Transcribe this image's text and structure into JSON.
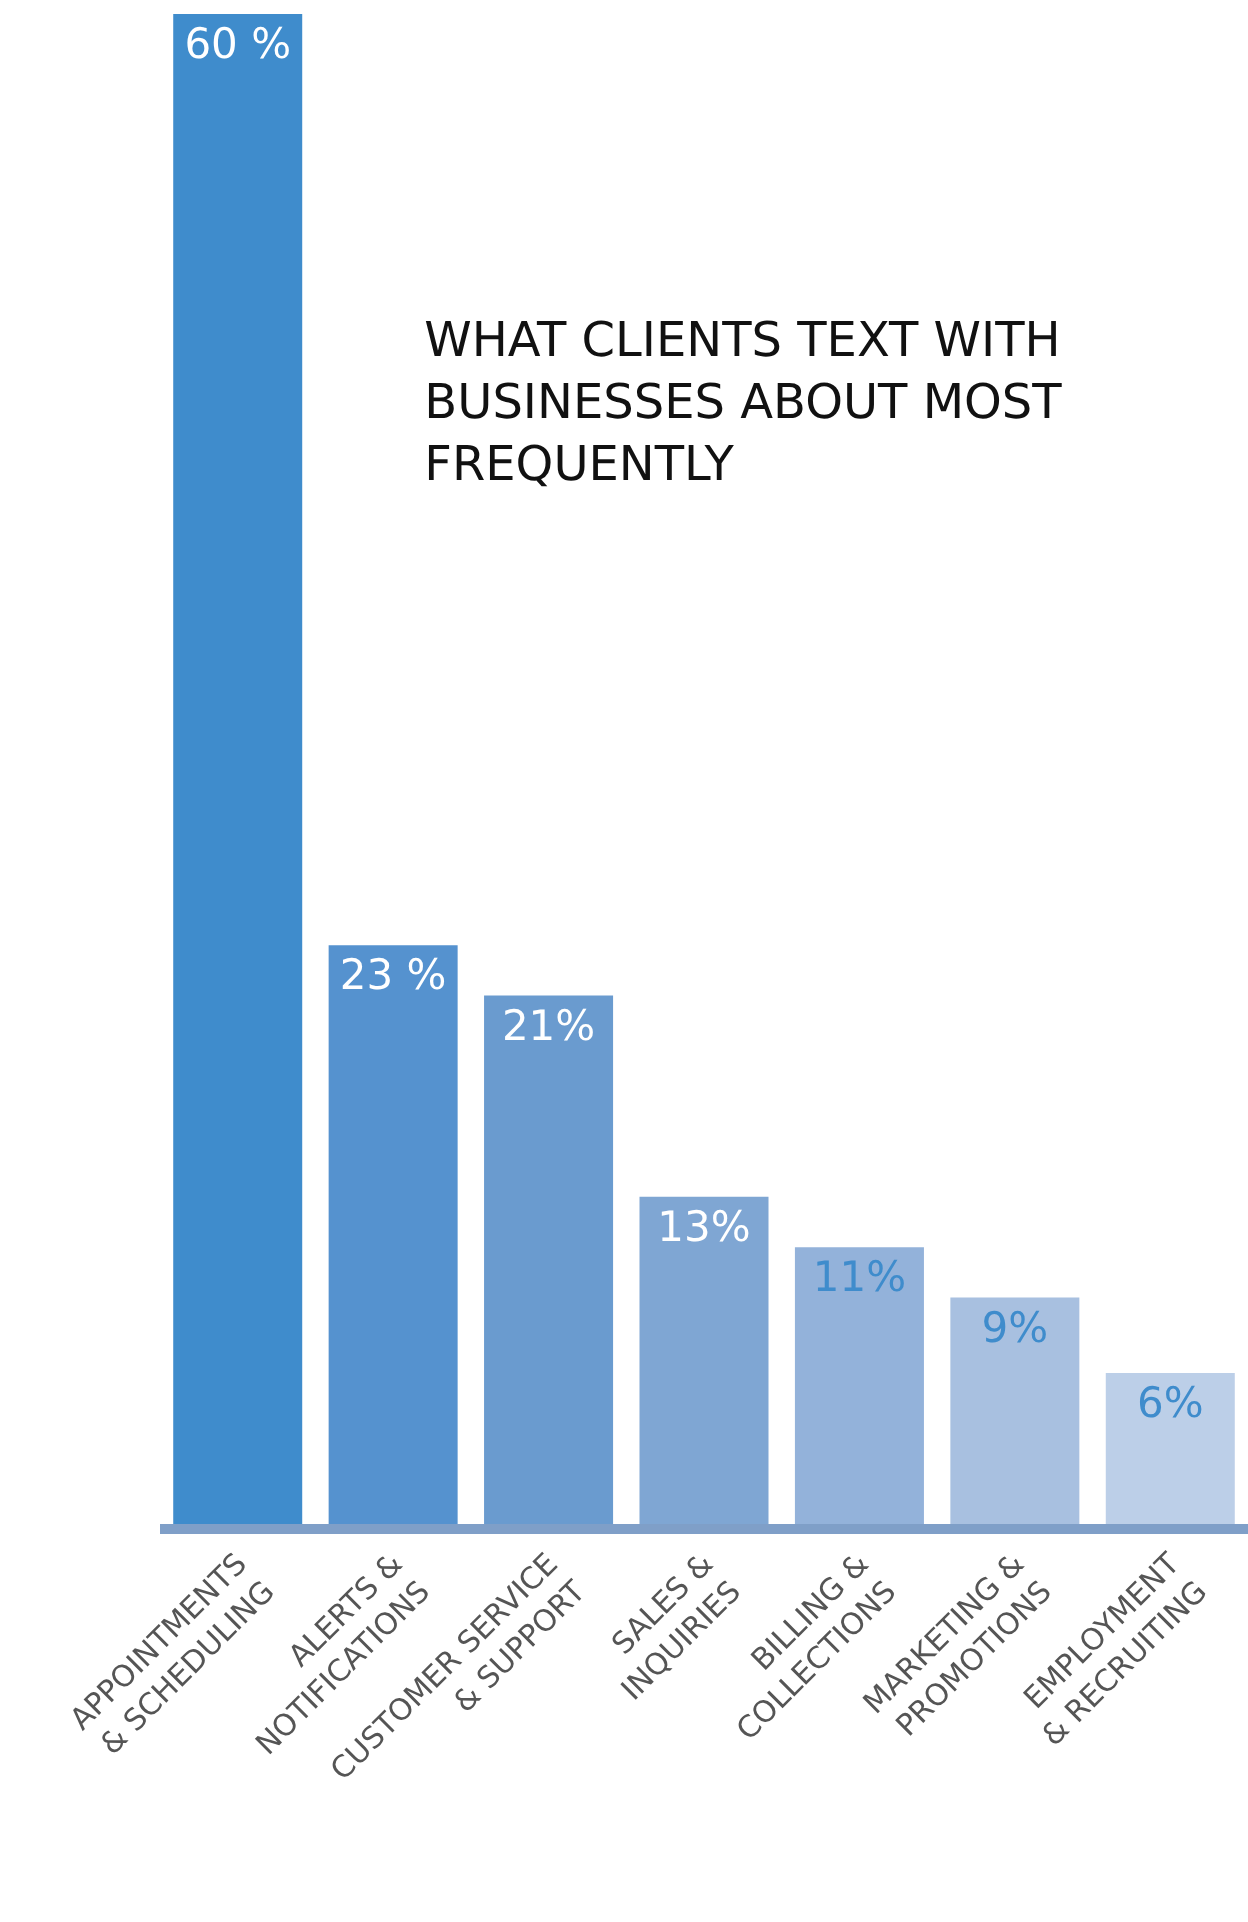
{
  "chart_data": {
    "type": "bar",
    "title": "WHAT CLIENTS TEXT WITH\nBUSINESSES ABOUT MOST\nFREQUENTLY",
    "categories": [
      "APPOINTMENTS\n& SCHEDULING",
      "ALERTS &\nNOTIFICATIONS",
      "CUSTOMER SERVICE\n& SUPPORT",
      "SALES &\nINQUIRIES",
      "BILLING &\nCOLLECTIONS",
      "MARKETING &\nPROMOTIONS",
      "EMPLOYMENT\n& RECRUITING"
    ],
    "values": [
      60,
      23,
      21,
      13,
      11,
      9,
      6
    ],
    "value_labels": [
      "60 %",
      "23 %",
      "21%",
      "13%",
      "11%",
      "9%",
      "6%"
    ],
    "colors": [
      "#3f8ccc",
      "#5592cf",
      "#6a9bcf",
      "#7fa6d3",
      "#93b2da",
      "#a8c0e0",
      "#bccfe8"
    ]
  }
}
